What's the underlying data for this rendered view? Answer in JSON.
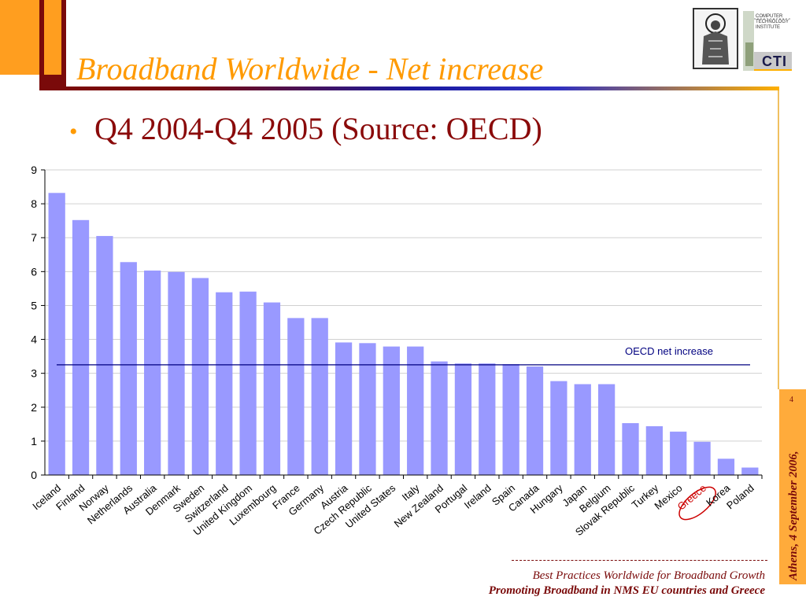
{
  "slide": {
    "title": "Broadband Worldwide - Net increase",
    "bullet": "Q4 2004-Q4 2005 (Source: OECD)",
    "bullet_marker": "•",
    "side_text": "Athens, 4 September 2006,",
    "page_number": "4",
    "footer_line1": "Best Practices Worldwide for Broadband Growth",
    "footer_line2": "Promoting Broadband in NMS EU countries and Greece",
    "logo_text": "COMPUTER TECHNOLOGY INSTITUTE",
    "logo_mark": "CTI"
  },
  "colors": {
    "bar": "#9999ff",
    "title": "#ff9a00",
    "dark_red": "#7a0a0a",
    "oecd_line": "#000080",
    "highlight": "#cc0000"
  },
  "chart_data": {
    "type": "bar",
    "categories": [
      "Iceland",
      "Finland",
      "Norway",
      "Netherlands",
      "Australia",
      "Denmark",
      "Sweden",
      "Switzerland",
      "United Kingdom",
      "Luxembourg",
      "France",
      "Germany",
      "Austria",
      "Czech Republic",
      "United States",
      "Italy",
      "New Zealand",
      "Portugal",
      "Ireland",
      "Spain",
      "Canada",
      "Hungary",
      "Japan",
      "Belgium",
      "Slovak Republic",
      "Turkey",
      "Mexico",
      "Greece",
      "Korea",
      "Poland"
    ],
    "values": [
      8.32,
      7.52,
      7.05,
      6.28,
      6.03,
      5.99,
      5.81,
      5.39,
      5.41,
      5.09,
      4.63,
      4.63,
      3.91,
      3.89,
      3.79,
      3.79,
      3.35,
      3.29,
      3.29,
      3.27,
      3.2,
      2.77,
      2.68,
      2.68,
      1.53,
      1.44,
      1.28,
      0.98,
      0.48,
      0.22
    ],
    "ylim": [
      0,
      9
    ],
    "yticks": [
      "0",
      "1",
      "2",
      "3",
      "4",
      "5",
      "6",
      "7",
      "8",
      "9"
    ],
    "grid": true,
    "reference_line": {
      "label": "OECD net increase",
      "value": 3.25
    },
    "highlighted_category": "Greece",
    "title": "",
    "xlabel": "",
    "ylabel": ""
  }
}
